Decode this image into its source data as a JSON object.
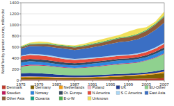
{
  "chart_data": {
    "type": "area",
    "y_label": "World fleet by operator country, million dwt",
    "x": [
      1975,
      1977,
      1979,
      1981,
      1983,
      1985,
      1987,
      1989,
      1991,
      1993,
      1995,
      1997,
      1999,
      2001,
      2003,
      2005,
      2007
    ],
    "xlim": [
      1975,
      2007
    ],
    "xticks": [
      1975,
      1979,
      1983,
      1987,
      1991,
      1995,
      1999,
      2003,
      2007
    ],
    "ylim": [
      0,
      1400
    ],
    "yticks": [
      0,
      200,
      400,
      600,
      800,
      1000,
      1200,
      1400
    ],
    "grid": true,
    "stacked": true,
    "legend": "bottom",
    "series": [
      {
        "name": "Denmark",
        "color": "#c0392b",
        "values": [
          18,
          20,
          20,
          19,
          18,
          17,
          16,
          17,
          18,
          20,
          22,
          24,
          25,
          27,
          30,
          34,
          40
        ]
      },
      {
        "name": "Germany",
        "color": "#7f6000",
        "values": [
          30,
          32,
          30,
          28,
          26,
          24,
          24,
          26,
          30,
          34,
          40,
          46,
          52,
          58,
          66,
          78,
          95
        ]
      },
      {
        "name": "Netherlands",
        "color": "#f39c12",
        "values": [
          16,
          16,
          15,
          14,
          13,
          12,
          11,
          11,
          12,
          12,
          13,
          13,
          14,
          14,
          16,
          18,
          20
        ]
      },
      {
        "name": "Poland",
        "color": "#f4b6c2",
        "values": [
          4,
          5,
          5,
          5,
          5,
          5,
          5,
          5,
          4,
          4,
          4,
          4,
          3,
          3,
          3,
          3,
          3
        ]
      },
      {
        "name": "UK",
        "color": "#1f3a93",
        "values": [
          60,
          62,
          58,
          52,
          44,
          38,
          34,
          32,
          32,
          30,
          30,
          30,
          28,
          28,
          30,
          34,
          40
        ]
      },
      {
        "name": "EU-Other",
        "color": "#8fd18f",
        "values": [
          120,
          135,
          140,
          140,
          135,
          130,
          128,
          135,
          145,
          155,
          165,
          175,
          180,
          190,
          210,
          240,
          280
        ]
      },
      {
        "name": "Sweden",
        "color": "#c2185b",
        "values": [
          14,
          14,
          12,
          10,
          9,
          8,
          8,
          9,
          10,
          10,
          10,
          10,
          9,
          9,
          9,
          10,
          10
        ]
      },
      {
        "name": "Norway",
        "color": "#2e86de",
        "values": [
          60,
          62,
          55,
          50,
          46,
          44,
          42,
          45,
          52,
          55,
          56,
          58,
          56,
          55,
          56,
          60,
          66
        ]
      },
      {
        "name": "Ot. Europe",
        "color": "#34495e",
        "values": [
          40,
          42,
          44,
          45,
          44,
          42,
          40,
          38,
          34,
          30,
          30,
          30,
          30,
          32,
          34,
          38,
          42
        ]
      },
      {
        "name": "N America",
        "color": "#e74c3c",
        "values": [
          70,
          72,
          72,
          70,
          66,
          62,
          60,
          60,
          58,
          56,
          55,
          54,
          52,
          52,
          54,
          58,
          62
        ]
      },
      {
        "name": "S C America",
        "color": "#a9d6f5",
        "values": [
          16,
          18,
          20,
          22,
          22,
          22,
          20,
          20,
          18,
          18,
          18,
          18,
          18,
          18,
          18,
          20,
          22
        ]
      },
      {
        "name": "East Asia",
        "color": "#3b6fc4",
        "values": [
          120,
          140,
          145,
          155,
          160,
          165,
          160,
          170,
          185,
          200,
          215,
          230,
          240,
          255,
          280,
          315,
          360
        ]
      },
      {
        "name": "Other Asia",
        "color": "#8e5b3a",
        "values": [
          25,
          30,
          35,
          40,
          42,
          44,
          46,
          48,
          50,
          55,
          60,
          66,
          72,
          78,
          86,
          95,
          110
        ]
      },
      {
        "name": "Oceania",
        "color": "#16a085",
        "values": [
          5,
          5,
          5,
          5,
          5,
          5,
          5,
          5,
          5,
          5,
          6,
          6,
          6,
          6,
          6,
          7,
          8
        ]
      },
      {
        "name": "E-o-W",
        "color": "#4caf50",
        "values": [
          12,
          14,
          14,
          14,
          13,
          12,
          12,
          12,
          12,
          12,
          12,
          12,
          12,
          12,
          14,
          16,
          18
        ]
      },
      {
        "name": "Unknown",
        "color": "#f1e05a",
        "values": [
          10,
          13,
          30,
          21,
          12,
          10,
          19,
          27,
          35,
          44,
          44,
          44,
          85,
          93,
          48,
          34,
          64
        ]
      }
    ]
  }
}
